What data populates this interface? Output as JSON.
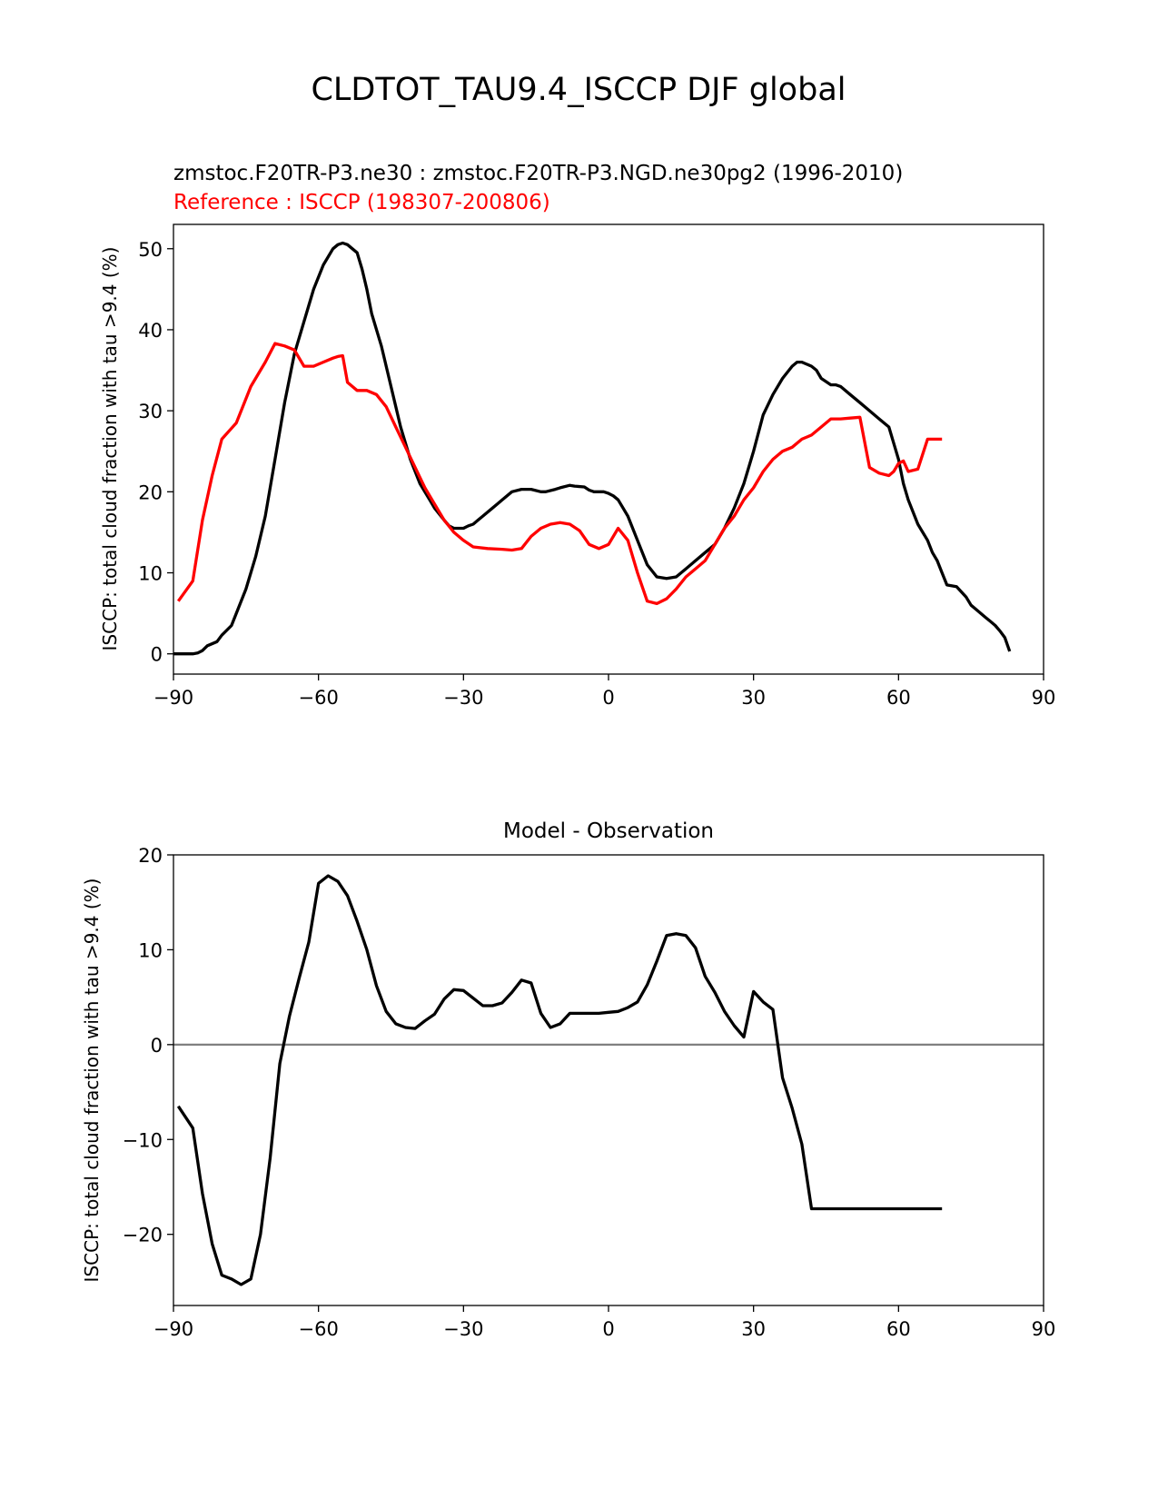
{
  "figure": {
    "title": "CLDTOT_TAU9.4_ISCCP DJF global"
  },
  "chart_data": [
    {
      "type": "line",
      "title_test": "zmstoc.F20TR-P3.ne30 : zmstoc.F20TR-P3.NGD.ne30pg2 (1996-2010)",
      "title_reference": "Reference : ISCCP (198307-200806)",
      "xlabel": "",
      "ylabel": "ISCCP: total cloud fraction with tau >9.4 (%)",
      "xlim": [
        -90,
        90
      ],
      "ylim": [
        -2.5,
        53
      ],
      "xticks": [
        -90,
        -60,
        -30,
        0,
        30,
        60,
        90
      ],
      "yticks": [
        0,
        10,
        20,
        30,
        40,
        50
      ],
      "grid": false,
      "series": [
        {
          "color": "#000000",
          "x": [
            -90,
            -88,
            -86,
            -85,
            -84,
            -83,
            -81,
            -80,
            -78,
            -77,
            -75,
            -73,
            -71,
            -69,
            -67,
            -65,
            -63,
            -61,
            -59,
            -57,
            -56,
            -55,
            -54,
            -52,
            -51,
            -50,
            -49,
            -47,
            -45,
            -43,
            -41,
            -39,
            -37,
            -36,
            -34,
            -33,
            -32,
            -31,
            -30,
            -29,
            -28,
            -27,
            -26,
            -24,
            -23,
            -22,
            -20,
            -18,
            -16,
            -14,
            -13,
            -11,
            -10,
            -8,
            -7,
            -5,
            -4,
            -3,
            -1,
            0,
            1,
            2,
            3,
            4,
            6,
            8,
            10,
            12,
            14,
            16,
            18,
            20,
            22,
            24,
            26,
            28,
            30,
            32,
            34,
            36,
            38,
            39,
            40,
            42,
            43,
            44,
            46,
            47,
            48,
            50,
            52,
            54,
            56,
            58,
            59,
            60,
            61,
            62,
            64,
            66,
            67,
            68,
            69,
            70,
            72,
            74,
            75,
            76,
            78,
            79,
            80,
            81,
            82,
            83
          ],
          "y": [
            0,
            0,
            0,
            0.1,
            0.4,
            1,
            1.5,
            2.3,
            3.5,
            5,
            8,
            12,
            17,
            24,
            31,
            37,
            41,
            45,
            48,
            50,
            50.5,
            50.7,
            50.5,
            49.5,
            47.5,
            45,
            42,
            38,
            33,
            28,
            24,
            21,
            19,
            18,
            16.5,
            15.8,
            15.5,
            15.5,
            15.5,
            15.8,
            16,
            16.5,
            17,
            18,
            18.5,
            19,
            20,
            20.3,
            20.3,
            20,
            20,
            20.3,
            20.5,
            20.8,
            20.7,
            20.6,
            20.2,
            20,
            20,
            19.8,
            19.5,
            19,
            18,
            17,
            14,
            11,
            9.5,
            9.3,
            9.5,
            10.5,
            11.5,
            12.5,
            13.5,
            15.5,
            18,
            21,
            25,
            29.5,
            32,
            34,
            35.5,
            36,
            36,
            35.5,
            35,
            34,
            33.2,
            33.2,
            33,
            32,
            31,
            30,
            29,
            28,
            26,
            24,
            21,
            19,
            16,
            14,
            12.5,
            11.5,
            10,
            8.5,
            8.3,
            7,
            6,
            5.5,
            4.5,
            4,
            3.5,
            2.8,
            2,
            0.3
          ]
        },
        {
          "color": "#ff0000",
          "x": [
            -89,
            -86,
            -84,
            -82,
            -80,
            -77,
            -74,
            -71,
            -69,
            -67,
            -65,
            -63,
            -61,
            -59,
            -57,
            -56,
            -55,
            -54,
            -52,
            -50,
            -48,
            -46,
            -44,
            -42,
            -40,
            -38,
            -36,
            -34,
            -32,
            -30,
            -28,
            -25,
            -22,
            -20,
            -18,
            -16,
            -14,
            -12,
            -10,
            -8,
            -6,
            -4,
            -2,
            0,
            2,
            4,
            6,
            8,
            10,
            12,
            14,
            16,
            18,
            20,
            22,
            24,
            26,
            28,
            30,
            32,
            34,
            36,
            38,
            40,
            42,
            44,
            46,
            48,
            50,
            52,
            54,
            56,
            58,
            59,
            60,
            61,
            62,
            64,
            66,
            68,
            69
          ],
          "y": [
            6.5,
            9,
            16.5,
            22,
            26.5,
            28.5,
            33,
            36,
            38.3,
            38,
            37.5,
            35.5,
            35.5,
            36,
            36.5,
            36.7,
            36.8,
            33.5,
            32.5,
            32.5,
            32,
            30.5,
            28,
            25.5,
            23,
            20.5,
            18.5,
            16.5,
            15,
            14,
            13.2,
            13,
            12.9,
            12.8,
            13,
            14.5,
            15.5,
            16,
            16.2,
            16,
            15.2,
            13.5,
            13,
            13.5,
            15.5,
            14,
            10,
            6.5,
            6.2,
            6.8,
            8,
            9.5,
            10.5,
            11.5,
            13.5,
            15.5,
            17,
            19,
            20.5,
            22.5,
            24,
            25,
            25.5,
            26.5,
            27,
            28,
            29,
            29,
            29.1,
            29.2,
            23,
            22.3,
            22,
            22.5,
            23.5,
            23.8,
            22.5,
            22.8,
            26.5,
            26.5,
            26.5
          ]
        }
      ]
    },
    {
      "type": "line",
      "title": "Model - Observation",
      "xlabel": "",
      "ylabel": "ISCCP: total cloud fraction with tau >9.4 (%)",
      "xlim": [
        -90,
        90
      ],
      "ylim": [
        -27.5,
        20
      ],
      "xticks": [
        -90,
        -60,
        -30,
        0,
        30,
        60,
        90
      ],
      "yticks": [
        -20,
        -10,
        0,
        10,
        20
      ],
      "grid": false,
      "reference_line": 0,
      "series": [
        {
          "color": "#000000",
          "x": [
            -89,
            -86,
            -84,
            -82,
            -80,
            -78,
            -76,
            -74,
            -72,
            -70,
            -68,
            -66,
            -64,
            -62,
            -60,
            -58,
            -56,
            -54,
            -52,
            -50,
            -48,
            -46,
            -44,
            -42,
            -40,
            -38,
            -36,
            -34,
            -32,
            -30,
            -28,
            -26,
            -24,
            -22,
            -20,
            -18,
            -16,
            -14,
            -12,
            -10,
            -8,
            -6,
            -4,
            -2,
            0,
            2,
            4,
            6,
            8,
            10,
            12,
            14,
            16,
            18,
            20,
            22,
            24,
            26,
            28,
            30,
            32,
            34,
            36,
            38,
            40,
            42,
            44,
            46,
            48,
            50,
            52,
            54,
            56,
            58,
            59,
            60,
            62,
            64,
            66,
            68,
            69
          ],
          "y": [
            -6.5,
            -8.8,
            -15.7,
            -21,
            -24.3,
            -24.7,
            -25.3,
            -24.7,
            -20,
            -12,
            -2,
            3,
            7,
            10.8,
            17,
            17.8,
            17.2,
            15.7,
            13,
            10,
            6.2,
            3.5,
            2.2,
            1.8,
            1.7,
            2.5,
            3.2,
            4.8,
            5.8,
            5.7,
            4.9,
            4.1,
            4.1,
            4.4,
            5.5,
            6.8,
            6.5,
            3.3,
            1.8,
            2.2,
            3.3,
            3.3,
            3.3,
            3.3,
            3.4,
            3.5,
            3.9,
            4.5,
            6.3,
            8.8,
            11.5,
            11.7,
            11.5,
            10.2,
            7.2,
            5.5,
            3.5,
            2,
            0.8,
            5.6,
            4.5,
            3.7,
            -3.5,
            -6.7,
            -10.5,
            -17.3,
            -17.3,
            -17.3,
            -17.3,
            -17.3,
            -17.3,
            -17.3,
            -17.3,
            -17.3,
            -17.3,
            -17.3,
            -17.3,
            -17.3,
            -17.3,
            -17.3,
            -17.3
          ]
        }
      ]
    }
  ]
}
